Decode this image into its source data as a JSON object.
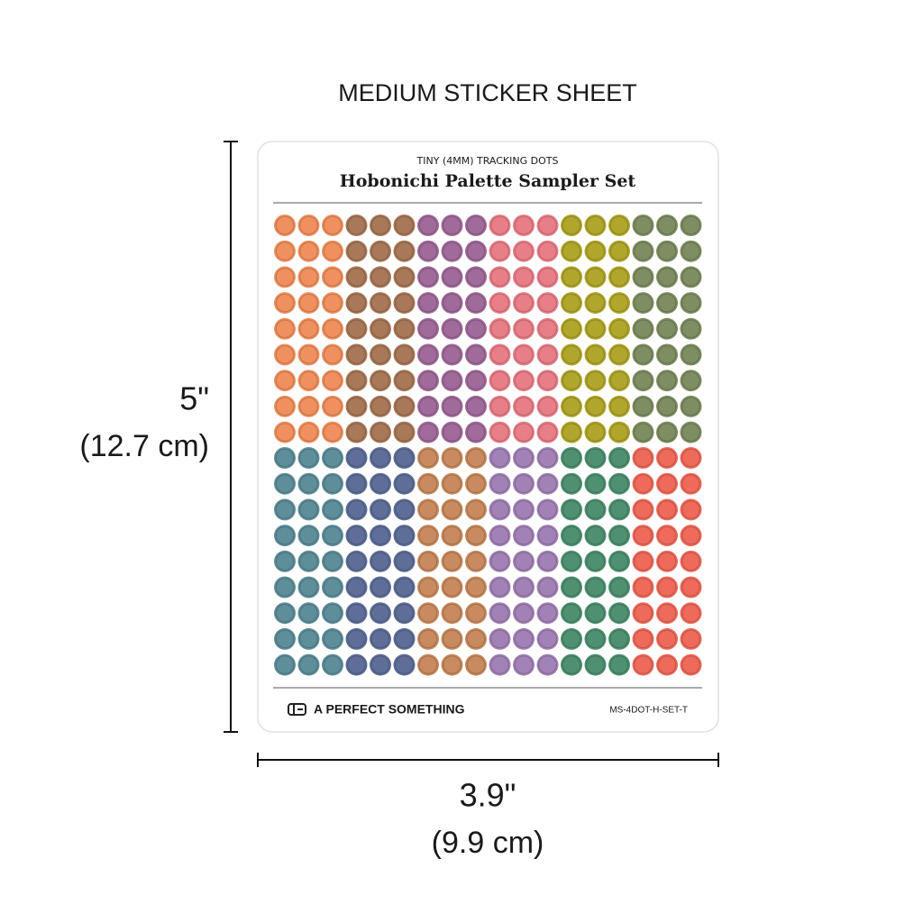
{
  "header": {
    "title": "MEDIUM STICKER SHEET"
  },
  "sheet": {
    "subtitle": "TINY (4MM) TRACKING DOTS",
    "title": "Hobonichi Palette Sampler Set",
    "brand": "A PERFECT SOMETHING",
    "sku": "MS-4DOT-H-SET-T",
    "top_colors": [
      "#f0905e",
      "#a87858",
      "#a06a9a",
      "#e87e88",
      "#b0a62c",
      "#7e8e62"
    ],
    "bottom_colors": [
      "#5e8e9a",
      "#5e6e98",
      "#c88a5e",
      "#a282b6",
      "#4e9070",
      "#ee6a5a"
    ]
  },
  "dimensions": {
    "height": "5\"",
    "height_metric": "(12.7 cm)",
    "width": "3.9\"",
    "width_metric": "(9.9 cm)"
  }
}
